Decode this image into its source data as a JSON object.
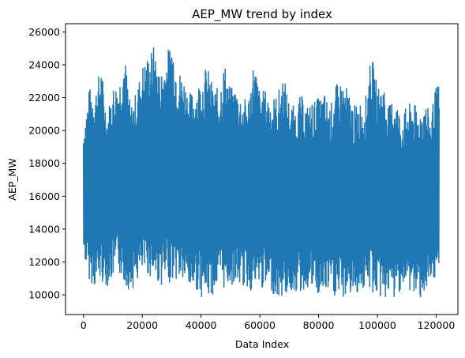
{
  "chart_data": {
    "type": "line",
    "title": "AEP_MW trend by index",
    "xlabel": "Data Index",
    "ylabel": "AEP_MW",
    "xlim": [
      -6100,
      127400
    ],
    "ylim": [
      8800,
      26500
    ],
    "xticks": [
      0,
      20000,
      40000,
      60000,
      80000,
      100000,
      120000
    ],
    "xtick_labels": [
      "0",
      "20000",
      "40000",
      "60000",
      "80000",
      "100000",
      "120000"
    ],
    "yticks": [
      10000,
      12000,
      14000,
      16000,
      18000,
      20000,
      22000,
      24000,
      26000
    ],
    "ytick_labels": [
      "10000",
      "12000",
      "14000",
      "16000",
      "18000",
      "20000",
      "22000",
      "24000",
      "26000"
    ],
    "grid": false,
    "color": "#1f77b4",
    "series": [
      {
        "name": "",
        "x": [
          0,
          2000,
          4000,
          6000,
          8000,
          10000,
          12000,
          14000,
          16000,
          18000,
          20000,
          22000,
          24000,
          26000,
          28000,
          30000,
          32000,
          34000,
          36000,
          38000,
          40000,
          42000,
          44000,
          46000,
          48000,
          50000,
          52000,
          54000,
          56000,
          58000,
          60000,
          62000,
          64000,
          66000,
          68000,
          70000,
          72000,
          74000,
          76000,
          78000,
          80000,
          82000,
          84000,
          86000,
          88000,
          90000,
          92000,
          94000,
          96000,
          98000,
          100000,
          102000,
          104000,
          106000,
          108000,
          110000,
          112000,
          114000,
          116000,
          118000,
          120000,
          121000
        ],
        "min": [
          12400,
          10900,
          10400,
          10800,
          10500,
          10900,
          11300,
          10600,
          10200,
          10700,
          11100,
          11200,
          10800,
          10600,
          10500,
          10900,
          10800,
          10700,
          10200,
          10400,
          9900,
          9700,
          10000,
          10400,
          10300,
          10600,
          10600,
          10500,
          10300,
          10100,
          10400,
          10200,
          10200,
          9700,
          9800,
          10100,
          10200,
          10000,
          10400,
          10200,
          9800,
          10000,
          10100,
          9700,
          9600,
          10100,
          9800,
          10300,
          10200,
          10100,
          9800,
          9700,
          9900,
          9600,
          10400,
          10300,
          10000,
          9700,
          10100,
          9900,
          10700,
          12000
        ],
        "max": [
          20100,
          22600,
          22500,
          24000,
          21000,
          22800,
          23000,
          24800,
          21500,
          22400,
          24000,
          24600,
          25200,
          23500,
          24500,
          25700,
          23800,
          23400,
          22300,
          22500,
          23300,
          24000,
          22800,
          22500,
          24200,
          22600,
          22700,
          22000,
          21900,
          24400,
          22400,
          22500,
          22000,
          22200,
          23500,
          21800,
          21400,
          22200,
          21500,
          21800,
          22000,
          22300,
          21500,
          22800,
          23100,
          22500,
          21500,
          21800,
          22000,
          24700,
          22700,
          23000,
          21500,
          22400,
          20800,
          21500,
          21800,
          21200,
          21900,
          21000,
          22700,
          22800
        ]
      }
    ]
  }
}
